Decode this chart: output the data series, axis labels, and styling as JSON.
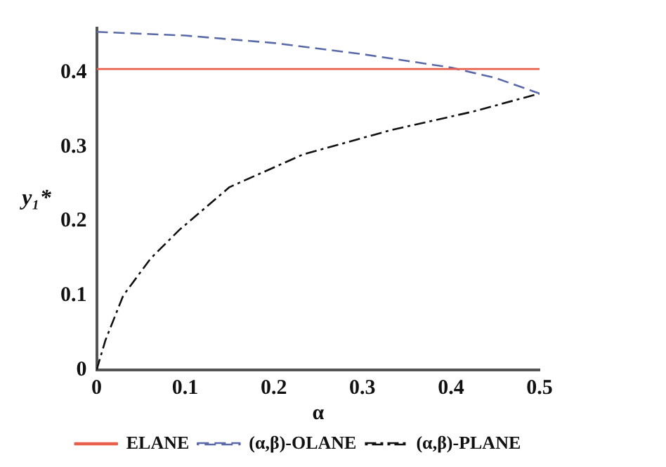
{
  "chart_data": {
    "type": "line",
    "xlabel": "α",
    "ylabel": "y₁*",
    "xlim": [
      0,
      0.5
    ],
    "ylim": [
      0,
      0.46
    ],
    "xticks": [
      0,
      0.1,
      0.2,
      0.3,
      0.4,
      0.5
    ],
    "yticks": [
      0,
      0.1,
      0.2,
      0.3,
      0.4
    ],
    "grid": false,
    "legend": "bottom",
    "marker": "none",
    "series": [
      {
        "name": "ELANE",
        "color": "#e8604c",
        "line_style": "solid",
        "x": [
          0,
          0.5
        ],
        "values": [
          0.405,
          0.405
        ]
      },
      {
        "name": "(α,β)-OLANE",
        "color": "#5a6aa8",
        "line_style": "dashed",
        "x": [
          0,
          0.1,
          0.2,
          0.3,
          0.35,
          0.4,
          0.45,
          0.5
        ],
        "values": [
          0.455,
          0.45,
          0.44,
          0.425,
          0.416,
          0.407,
          0.393,
          0.372
        ]
      },
      {
        "name": "(α,β)-PLANE",
        "color": "#111111",
        "line_style": "dashdot",
        "x": [
          0,
          0.005,
          0.01,
          0.03,
          0.061,
          0.093,
          0.15,
          0.233,
          0.333,
          0.426,
          0.5
        ],
        "values": [
          0,
          0.02,
          0.04,
          0.1,
          0.15,
          0.188,
          0.246,
          0.29,
          0.323,
          0.348,
          0.372
        ]
      }
    ]
  }
}
